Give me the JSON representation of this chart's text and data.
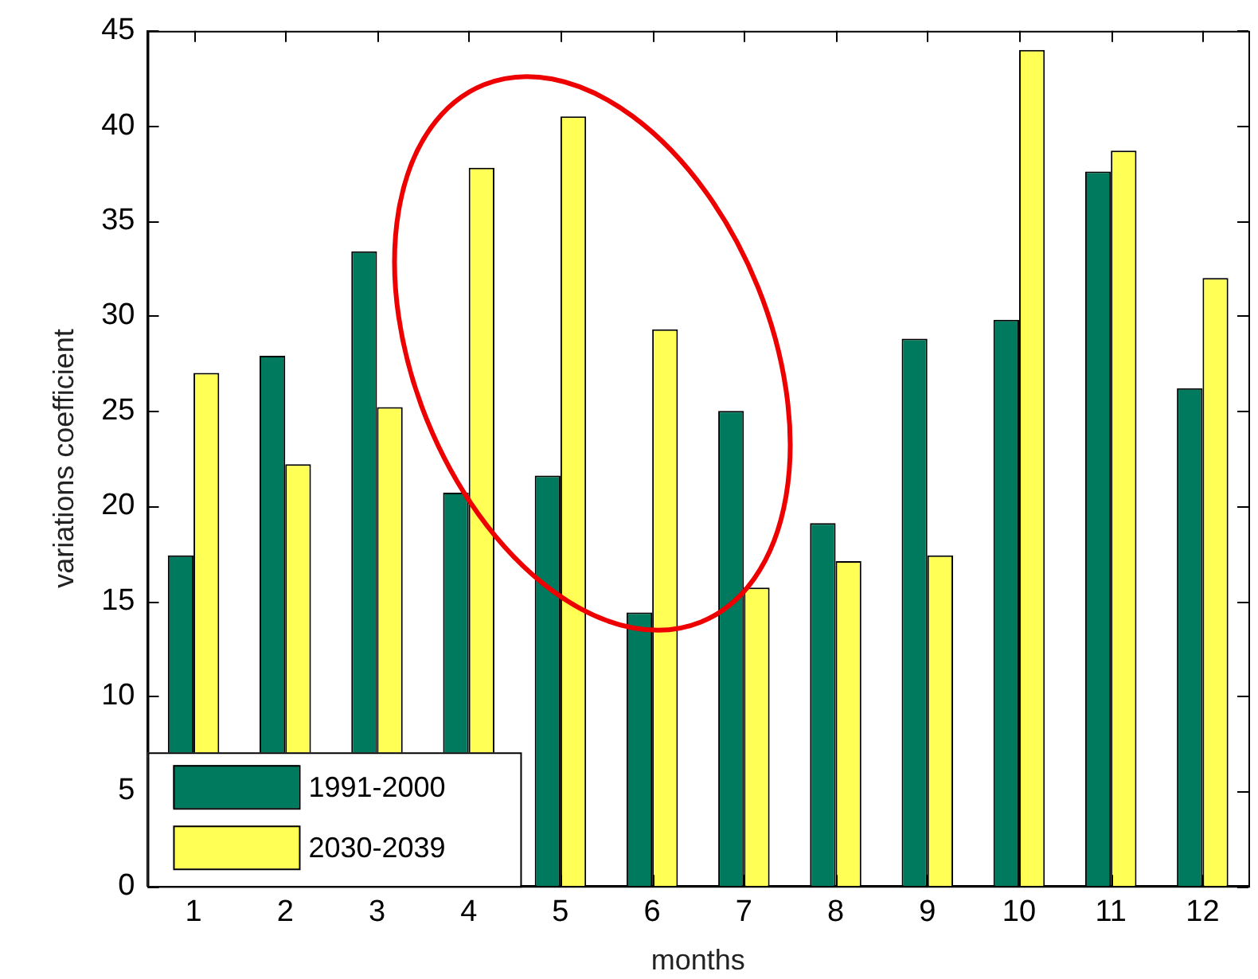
{
  "chart_data": {
    "type": "bar",
    "xlabel": "months",
    "ylabel": "variations coefficient",
    "categories": [
      "1",
      "2",
      "3",
      "4",
      "5",
      "6",
      "7",
      "8",
      "9",
      "10",
      "11",
      "12"
    ],
    "series": [
      {
        "name": "1991-2000",
        "color": "#007a5e",
        "values": [
          17.4,
          27.9,
          33.4,
          20.7,
          21.6,
          14.4,
          25.0,
          19.1,
          28.8,
          29.8,
          37.6,
          26.2
        ]
      },
      {
        "name": "2030-2039",
        "color": "#ffff55",
        "values": [
          27.0,
          22.2,
          25.2,
          37.8,
          40.5,
          29.3,
          15.7,
          17.1,
          17.4,
          44.0,
          38.7,
          32.0
        ]
      }
    ],
    "ylim": [
      0,
      45
    ],
    "yticks": [
      0,
      5,
      10,
      15,
      20,
      25,
      30,
      35,
      40,
      45
    ],
    "grid": false,
    "legend": "bottom left"
  }
}
